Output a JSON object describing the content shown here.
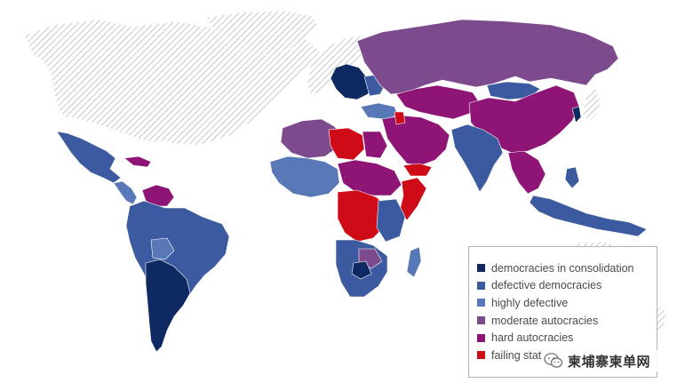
{
  "colors": {
    "democracies_in_consolidation": "#0f2a63",
    "defective_democracies": "#3c5a9f",
    "highly_defective": "#5878b8",
    "moderate_autocracies": "#7d4a8d",
    "hard_autocracies": "#8e1475",
    "failing_states": "#cf0b17",
    "not_assessed": "#dcdcdc"
  },
  "legend": {
    "items": [
      {
        "label": "democracies in consolidation",
        "color": "#0f2a63"
      },
      {
        "label": "defective democracies",
        "color": "#3c5a9f"
      },
      {
        "label": "highly defective",
        "color": "#5878b8"
      },
      {
        "label": "moderate autocracies",
        "color": "#7d4a8d"
      },
      {
        "label": "hard autocracies",
        "color": "#8e1475"
      },
      {
        "label": "failing stat",
        "color": "#cf0b17"
      }
    ]
  },
  "watermark": {
    "text": "柬埔寨柬单网",
    "icon": "wechat-icon"
  }
}
